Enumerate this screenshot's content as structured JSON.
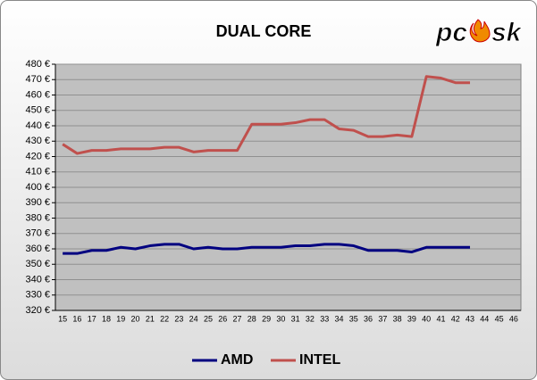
{
  "chart_data": {
    "type": "line",
    "title": "DUAL CORE",
    "logo": [
      "pc",
      "sk"
    ],
    "categories": [
      "15",
      "16",
      "17",
      "18",
      "19",
      "20",
      "21",
      "22",
      "23",
      "24",
      "25",
      "26",
      "27",
      "28",
      "29",
      "30",
      "31",
      "32",
      "33",
      "34",
      "35",
      "36",
      "37",
      "38",
      "39",
      "40",
      "41",
      "42",
      "43",
      "44",
      "45",
      "46"
    ],
    "series": [
      {
        "name": "AMD",
        "color": "#000080",
        "values": [
          357,
          357,
          359,
          359,
          361,
          360,
          362,
          363,
          363,
          360,
          361,
          360,
          360,
          361,
          361,
          361,
          362,
          362,
          363,
          363,
          362,
          359,
          359,
          359,
          358,
          361,
          361,
          361,
          361,
          null,
          null,
          null
        ]
      },
      {
        "name": "INTEL",
        "color": "#c0504d",
        "values": [
          428,
          422,
          424,
          424,
          425,
          425,
          425,
          426,
          426,
          423,
          424,
          424,
          424,
          441,
          441,
          441,
          442,
          444,
          444,
          438,
          437,
          433,
          433,
          434,
          433,
          472,
          471,
          468,
          468,
          null,
          null,
          null
        ]
      }
    ],
    "ylim": [
      320,
      480
    ],
    "yticks": [
      {
        "value": 320,
        "label": "320 €"
      },
      {
        "value": 330,
        "label": "330 €"
      },
      {
        "value": 340,
        "label": "340 €"
      },
      {
        "value": 350,
        "label": "350 €"
      },
      {
        "value": 360,
        "label": "360 €"
      },
      {
        "value": 370,
        "label": "370 €"
      },
      {
        "value": 380,
        "label": "380 €"
      },
      {
        "value": 390,
        "label": "390 €"
      },
      {
        "value": 400,
        "label": "400 €"
      },
      {
        "value": 410,
        "label": "410 €"
      },
      {
        "value": 420,
        "label": "420 €"
      },
      {
        "value": 430,
        "label": "430 €"
      },
      {
        "value": 440,
        "label": "440 €"
      },
      {
        "value": 450,
        "label": "450 €"
      },
      {
        "value": 460,
        "label": "460 €"
      },
      {
        "value": 470,
        "label": "470 €"
      },
      {
        "value": 480,
        "label": "480 €"
      }
    ],
    "grid": true,
    "legend": "bottom"
  }
}
